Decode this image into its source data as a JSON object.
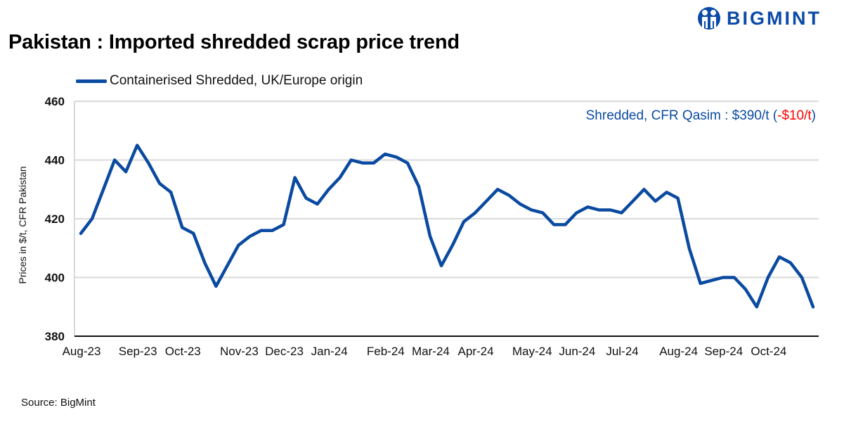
{
  "title": "Pakistan : Imported shredded scrap price trend",
  "logo": {
    "text": "BIGMINT",
    "color": "#0a4aa8"
  },
  "annotation": {
    "prefix": "Shredded, CFR Qasim : $390/t (",
    "change": "-$10/t",
    "suffix": ")",
    "color": "#0a4aa0",
    "change_color": "#ff0000"
  },
  "source": "Source: BigMint",
  "chart_data": {
    "type": "line",
    "title": "Pakistan : Imported shredded scrap price trend",
    "xlabel": "",
    "ylabel": "Prices in $/t, CFR Pakistan",
    "ylim": [
      380,
      460
    ],
    "yticks": [
      "380",
      "400",
      "420",
      "440",
      "460"
    ],
    "grid": true,
    "legend": "top-left",
    "x_tick_labels": [
      {
        "index": 0,
        "label": "Aug-23"
      },
      {
        "index": 5,
        "label": "Sep-23"
      },
      {
        "index": 9,
        "label": "Oct-23"
      },
      {
        "index": 14,
        "label": "Nov-23"
      },
      {
        "index": 18,
        "label": "Dec-23"
      },
      {
        "index": 22,
        "label": "Jan-24"
      },
      {
        "index": 27,
        "label": "Feb-24"
      },
      {
        "index": 31,
        "label": "Mar-24"
      },
      {
        "index": 35,
        "label": "Apr-24"
      },
      {
        "index": 40,
        "label": "May-24"
      },
      {
        "index": 44,
        "label": "Jun-24"
      },
      {
        "index": 48,
        "label": "Jul-24"
      },
      {
        "index": 53,
        "label": "Aug-24"
      },
      {
        "index": 57,
        "label": "Sep-24"
      },
      {
        "index": 61,
        "label": "Oct-24"
      }
    ],
    "series": [
      {
        "name": "Containerised Shredded, UK/Europe origin",
        "color": "#0a4aa0",
        "values": [
          415,
          420,
          430,
          440,
          436,
          445,
          439,
          432,
          429,
          417,
          415,
          405,
          397,
          404,
          411,
          414,
          416,
          416,
          418,
          434,
          427,
          425,
          430,
          434,
          440,
          439,
          439,
          442,
          441,
          439,
          431,
          414,
          404,
          411,
          419,
          422,
          426,
          430,
          428,
          425,
          423,
          422,
          418,
          418,
          422,
          424,
          423,
          423,
          422,
          426,
          430,
          426,
          429,
          427,
          410,
          398,
          399,
          400,
          400,
          396,
          390,
          400,
          407,
          405,
          400,
          390
        ]
      }
    ]
  }
}
